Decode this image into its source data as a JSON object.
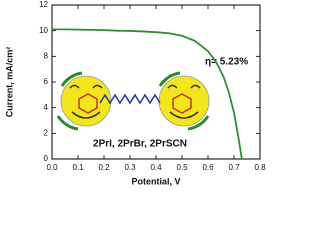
{
  "chart_data": {
    "type": "line",
    "xlabel": "Potential, V",
    "ylabel": "Current, mA/cm²",
    "annotations": [
      "η= 5.23%",
      "2PrI, 2PrBr, 2PrSCN"
    ],
    "x": [
      0,
      0.05,
      0.1,
      0.15,
      0.2,
      0.25,
      0.3,
      0.35,
      0.4,
      0.45,
      0.5,
      0.55,
      0.6,
      0.63,
      0.66,
      0.68,
      0.7,
      0.71,
      0.72,
      0.73
    ],
    "values": [
      10.1,
      10.1,
      10.08,
      10.06,
      10.04,
      10.0,
      9.98,
      9.94,
      9.88,
      9.8,
      9.6,
      9.2,
      8.4,
      7.6,
      6.4,
      5.2,
      3.6,
      2.5,
      1.3,
      0
    ],
    "color": "#2f8f2f",
    "xlim": [
      0,
      0.8
    ],
    "xticks": [
      {
        "value": 0,
        "label": "0.0"
      },
      0.1,
      0.2,
      0.3,
      0.4,
      0.5,
      0.6,
      0.7,
      0.8
    ],
    "ylim": [
      0,
      12
    ],
    "yticks": [
      0,
      2,
      4,
      6,
      8,
      10,
      12
    ]
  }
}
